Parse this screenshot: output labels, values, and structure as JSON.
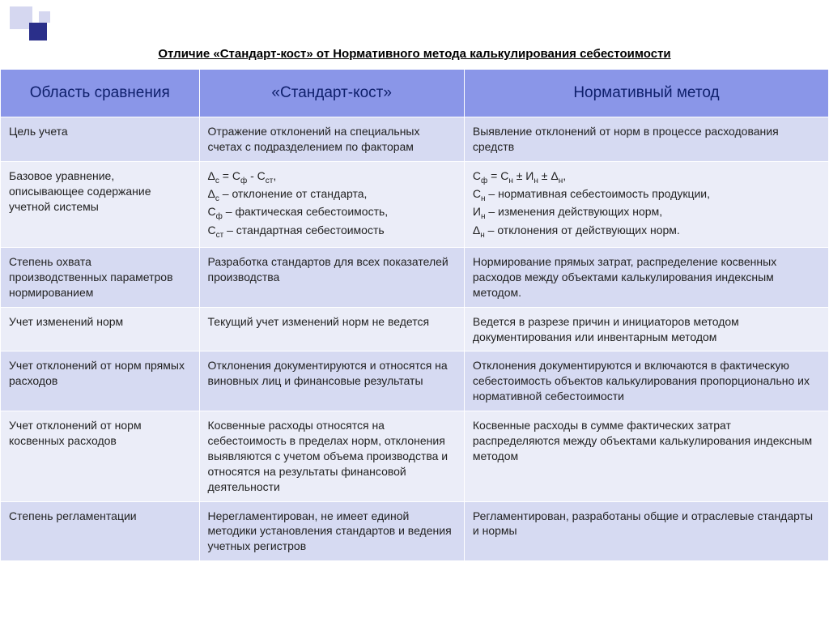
{
  "title": "Отличие «Стандарт-кост» от Нормативного метода калькулирования себестоимости",
  "headers": {
    "col1": "Область сравнения",
    "col2": "«Стандарт-кост»",
    "col3": "Нормативный метод"
  },
  "rows": [
    {
      "c1": "Цель учета",
      "c2": "Отражение отклонений на специальных счетах с подразделением по факторам",
      "c3": "Выявление отклонений от норм в процессе расходования средств"
    },
    {
      "c1": "Базовое уравнение, описывающее содержание учетной системы",
      "c2": "Δс = Сф - Сст,\nΔс – отклонение от стандарта,\nСф – фактическая себестоимость,\nСст – стандартная себестоимость",
      "c3": "Сф = Сн ± Ин ± Δн,\nСн – нормативная себестоимость продукции,\nИн – изменения действующих норм,\nΔн – отклонения от действующих норм."
    },
    {
      "c1": "Степень охвата производственных параметров нормированием",
      "c2": "Разработка стандартов для всех показателей производства",
      "c3": "Нормирование прямых затрат, распределение косвенных расходов между объектами калькулирования индексным методом."
    },
    {
      "c1": "Учет изменений норм",
      "c2": "Текущий учет изменений норм не ведется",
      "c3": "Ведется в разрезе причин и инициаторов методом документирования или инвентарным методом"
    },
    {
      "c1": "Учет отклонений от норм прямых расходов",
      "c2": "Отклонения документируются и относятся на виновных лиц и финансовые результаты",
      "c3": "Отклонения документируются и включаются  в фактическую себестоимость объектов калькулирования пропорционально их нормативной себестоимости"
    },
    {
      "c1": "Учет отклонений от норм косвенных расходов",
      "c2": "Косвенные расходы относятся на себестоимость в пределах норм, отклонения выявляются  с учетом объема производства и относятся на результаты финансовой деятельности",
      "c3": "Косвенные расходы в сумме фактических затрат распределяются между объектами калькулирования индексным методом"
    },
    {
      "c1": "Степень регламентации",
      "c2": "Нерегламентирован, не имеет единой методики установления стандартов и ведения учетных регистров",
      "c3": "Регламентирован, разработаны общие и отраслевые стандарты и нормы"
    }
  ],
  "styling": {
    "header_bg": "#8a96e8",
    "header_text": "#0e1f6b",
    "row_a_bg": "#d6daf2",
    "row_b_bg": "#ebedf8",
    "border_color": "#ffffff",
    "body_font_size": 14,
    "header_font_size": 19,
    "col_widths": [
      "24%",
      "32%",
      "44%"
    ],
    "decor_colors": {
      "light": "#d5d7f0",
      "dark": "#2a2f8a"
    }
  }
}
